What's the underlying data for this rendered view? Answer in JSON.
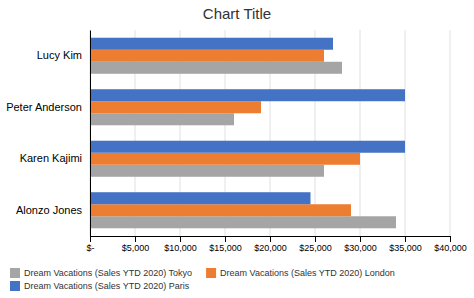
{
  "chart_data": {
    "type": "bar",
    "orientation": "horizontal",
    "title": "Chart Title",
    "categories": [
      "Lucy Kim",
      "Peter Anderson",
      "Karen Kajimi",
      "Alonzo Jones"
    ],
    "series": [
      {
        "name": "Dream Vacations (Sales YTD 2020) Tokyo",
        "color": "#a5a5a5",
        "values": [
          28000,
          16000,
          26000,
          34000
        ]
      },
      {
        "name": "Dream Vacations (Sales YTD 2020) London",
        "color": "#ed7d31",
        "values": [
          26000,
          19000,
          30000,
          29000
        ]
      },
      {
        "name": "Dream Vacations (Sales YTD 2020) Paris",
        "color": "#4472c4",
        "values": [
          27000,
          35000,
          35000,
          24500
        ]
      }
    ],
    "xlim": [
      0,
      40000
    ],
    "xticks": [
      {
        "value": 0,
        "label": "$-"
      },
      {
        "value": 5000,
        "label": "$5,000"
      },
      {
        "value": 10000,
        "label": "$10,000"
      },
      {
        "value": 15000,
        "label": "$15,000"
      },
      {
        "value": 20000,
        "label": "$20,000"
      },
      {
        "value": 25000,
        "label": "$25,000"
      },
      {
        "value": 30000,
        "label": "$30,000"
      },
      {
        "value": 35000,
        "label": "$35,000"
      },
      {
        "value": 40000,
        "label": "$40,000"
      }
    ],
    "grid": true,
    "legend": "bottom"
  }
}
